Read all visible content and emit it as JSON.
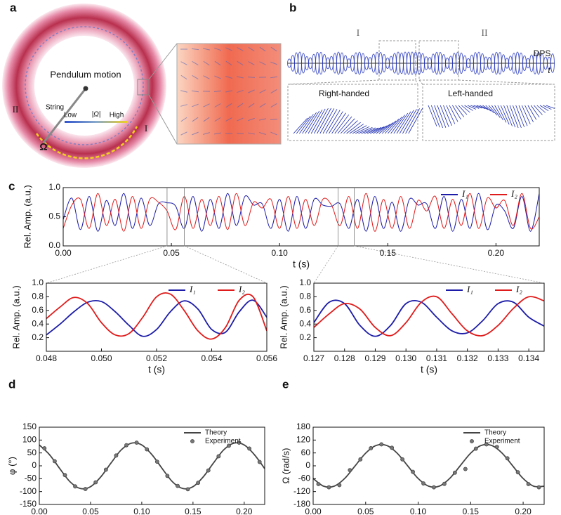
{
  "panels": {
    "a": "a",
    "b": "b",
    "c": "c",
    "d": "d",
    "e": "e"
  },
  "illustration_a": {
    "pendulum": "Pendulum motion",
    "string": "String",
    "low": "Low",
    "omega_abs": "|Ω|",
    "high": "High",
    "label_II": "II",
    "label_I": "I",
    "omega": "Ω"
  },
  "illustration_b": {
    "label_I": "I",
    "label_II": "II",
    "dps": "DPS",
    "t": "t",
    "right": "Right-handed",
    "left": "Left-handed"
  },
  "chart_data": [
    {
      "type": "line",
      "ylabel": "Rel. Amp. (a.u.)",
      "xlabel": "t (s)",
      "legend": "top-right",
      "x": [
        0,
        0.004,
        0.008,
        0.012,
        0.016,
        0.02,
        0.024,
        0.028,
        0.032,
        0.036,
        0.04,
        0.044,
        0.048,
        0.052,
        0.056,
        0.06,
        0.064,
        0.068,
        0.072,
        0.076,
        0.08,
        0.084,
        0.088,
        0.092,
        0.096,
        0.1,
        0.104,
        0.108,
        0.112,
        0.116,
        0.12,
        0.124,
        0.128,
        0.132,
        0.136,
        0.14,
        0.144,
        0.148,
        0.152,
        0.156,
        0.16,
        0.164,
        0.168,
        0.172,
        0.176,
        0.18,
        0.184,
        0.188,
        0.192,
        0.196,
        0.2,
        0.204,
        0.208,
        0.212,
        0.216,
        0.22
      ],
      "series": [
        {
          "name": "I₁",
          "color": "#1c1ca8",
          "values": [
            0.45,
            0.82,
            0.28,
            0.85,
            0.25,
            0.78,
            0.35,
            0.9,
            0.3,
            0.82,
            0.35,
            0.72,
            0.74,
            0.68,
            0.3,
            0.85,
            0.25,
            0.8,
            0.3,
            0.9,
            0.35,
            0.85,
            0.7,
            0.72,
            0.3,
            0.8,
            0.25,
            0.85,
            0.3,
            0.8,
            0.7,
            0.68,
            0.72,
            0.3,
            0.8,
            0.25,
            0.85,
            0.3,
            0.75,
            0.25,
            0.8,
            0.7,
            0.72,
            0.3,
            0.85,
            0.25,
            0.8,
            0.3,
            0.9,
            0.28,
            0.7,
            0.6,
            0.3,
            0.85,
            0.25,
            0.9
          ]
        },
        {
          "name": "I₂",
          "color": "#e01b1b",
          "values": [
            0.3,
            0.7,
            0.8,
            0.3,
            0.9,
            0.35,
            0.8,
            0.25,
            0.85,
            0.3,
            0.8,
            0.75,
            0.6,
            0.28,
            0.85,
            0.3,
            0.8,
            0.35,
            0.85,
            0.28,
            0.9,
            0.35,
            0.75,
            0.65,
            0.8,
            0.3,
            0.85,
            0.3,
            0.8,
            0.35,
            0.8,
            0.7,
            0.35,
            0.85,
            0.3,
            0.9,
            0.25,
            0.8,
            0.3,
            0.85,
            0.3,
            0.78,
            0.6,
            0.85,
            0.3,
            0.8,
            0.35,
            0.9,
            0.3,
            0.82,
            0.65,
            0.78,
            0.35,
            0.9,
            0.3,
            0.5
          ]
        }
      ],
      "xlim": [
        0,
        0.22
      ],
      "xticks": [
        {
          "value": 0,
          "label": "0.00"
        },
        0.05,
        {
          "value": 0.1,
          "label": "0.10"
        },
        0.15,
        {
          "value": 0.2,
          "label": "0.20"
        }
      ],
      "ylim": [
        0,
        1
      ],
      "yticks": [
        {
          "value": 0,
          "label": "0.0"
        },
        0.5,
        {
          "value": 1,
          "label": "1.0"
        }
      ]
    },
    {
      "type": "line",
      "ylabel": "Rel. Amp. (a.u.)",
      "xlabel": "t (s)",
      "legend": "top-right",
      "x": [
        0.048,
        0.0485,
        0.049,
        0.0495,
        0.05,
        0.0505,
        0.051,
        0.0515,
        0.052,
        0.0525,
        0.053,
        0.0535,
        0.054,
        0.0545,
        0.055,
        0.0555,
        0.056
      ],
      "series": [
        {
          "name": "I₁",
          "color": "#1c1ca8",
          "values": [
            0.24,
            0.4,
            0.58,
            0.72,
            0.73,
            0.58,
            0.38,
            0.22,
            0.32,
            0.58,
            0.74,
            0.62,
            0.32,
            0.28,
            0.58,
            0.75,
            0.5
          ]
        },
        {
          "name": "I₂",
          "color": "#e01b1b",
          "values": [
            0.48,
            0.65,
            0.79,
            0.7,
            0.42,
            0.24,
            0.26,
            0.5,
            0.8,
            0.84,
            0.6,
            0.3,
            0.18,
            0.35,
            0.75,
            0.8,
            0.3
          ]
        }
      ],
      "xlim": [
        0.048,
        0.056
      ],
      "xticks": [
        0.048,
        {
          "value": 0.05,
          "label": "0.050"
        },
        0.052,
        0.054,
        0.056
      ],
      "ylim": [
        0,
        1
      ],
      "yticks": [
        0.2,
        0.4,
        0.6,
        0.8,
        {
          "value": 1,
          "label": "1.0"
        }
      ]
    },
    {
      "type": "line",
      "ylabel": "Rel. Amp. (a.u.)",
      "xlabel": "t (s)",
      "legend": "top-right",
      "x": [
        0.127,
        0.1275,
        0.128,
        0.1285,
        0.129,
        0.1295,
        0.13,
        0.1305,
        0.131,
        0.1315,
        0.132,
        0.1325,
        0.133,
        0.1335,
        0.134,
        0.1345
      ],
      "series": [
        {
          "name": "I₁",
          "color": "#1c1ca8",
          "values": [
            0.42,
            0.72,
            0.7,
            0.38,
            0.22,
            0.38,
            0.7,
            0.72,
            0.5,
            0.3,
            0.27,
            0.45,
            0.7,
            0.72,
            0.5,
            0.37
          ]
        },
        {
          "name": "I₂",
          "color": "#e01b1b",
          "values": [
            0.35,
            0.55,
            0.7,
            0.62,
            0.35,
            0.23,
            0.42,
            0.72,
            0.8,
            0.55,
            0.3,
            0.23,
            0.38,
            0.63,
            0.8,
            0.74
          ]
        }
      ],
      "xlim": [
        0.127,
        0.1345
      ],
      "xticks": [
        0.127,
        0.128,
        0.129,
        {
          "value": 0.13,
          "label": "0.130"
        },
        0.131,
        0.132,
        0.133,
        0.134
      ],
      "ylim": [
        0,
        1
      ],
      "yticks": [
        0.2,
        0.4,
        0.6,
        0.8,
        {
          "value": 1,
          "label": "1.0"
        }
      ]
    },
    {
      "type": "line",
      "ylabel": "φ (°)",
      "xlabel": "t (s)",
      "legend": "top-right",
      "series": [
        {
          "name": "Theory",
          "color": "#454545",
          "mode": "line",
          "x": [
            0,
            0.01,
            0.02,
            0.03,
            0.04,
            0.05,
            0.06,
            0.07,
            0.08,
            0.09,
            0.1,
            0.11,
            0.12,
            0.13,
            0.14,
            0.15,
            0.16,
            0.17,
            0.18,
            0.19,
            0.2,
            0.21,
            0.22
          ],
          "values": [
            81,
            43,
            -11,
            -62,
            -88,
            -81,
            -43,
            11,
            62,
            88,
            81,
            43,
            -11,
            -62,
            -88,
            -81,
            -43,
            11,
            62,
            88,
            81,
            43,
            -11
          ]
        },
        {
          "name": "Experiment",
          "color": "#777777",
          "mode": "markers",
          "x": [
            0.005,
            0.015,
            0.025,
            0.035,
            0.045,
            0.055,
            0.065,
            0.075,
            0.085,
            0.095,
            0.105,
            0.115,
            0.125,
            0.135,
            0.145,
            0.155,
            0.165,
            0.175,
            0.185,
            0.195,
            0.205,
            0.215
          ],
          "values": [
            68,
            18,
            -36,
            -80,
            -90,
            -64,
            -15,
            40,
            80,
            90,
            64,
            16,
            -39,
            -78,
            -91,
            -66,
            -18,
            37,
            78,
            90,
            67,
            15
          ]
        }
      ],
      "xlim": [
        0,
        0.22
      ],
      "xticks": [
        {
          "value": 0,
          "label": "0.00"
        },
        0.05,
        {
          "value": 0.1,
          "label": "0.10"
        },
        0.15,
        {
          "value": 0.2,
          "label": "0.20"
        }
      ],
      "ylim": [
        -150,
        150
      ],
      "yticks": [
        -150,
        -100,
        -50,
        0,
        50,
        100,
        150
      ]
    },
    {
      "type": "line",
      "ylabel": "Ω (rad/s)",
      "xlabel": "t (s)",
      "legend": "top-right",
      "series": [
        {
          "name": "Theory",
          "color": "#454545",
          "mode": "line",
          "x": [
            0,
            0.01,
            0.02,
            0.03,
            0.04,
            0.05,
            0.06,
            0.07,
            0.08,
            0.09,
            0.1,
            0.11,
            0.12,
            0.13,
            0.14,
            0.15,
            0.16,
            0.17,
            0.18,
            0.19,
            0.2,
            0.21,
            0.22
          ],
          "values": [
            -59,
            -95,
            -95,
            -59,
            0,
            59,
            95,
            95,
            59,
            0,
            -59,
            -95,
            -95,
            -59,
            0,
            59,
            95,
            95,
            59,
            0,
            -59,
            -95,
            -95
          ]
        },
        {
          "name": "Experiment",
          "color": "#777777",
          "mode": "markers",
          "x": [
            0.005,
            0.015,
            0.025,
            0.035,
            0.045,
            0.055,
            0.065,
            0.075,
            0.085,
            0.095,
            0.105,
            0.115,
            0.125,
            0.135,
            0.145,
            0.155,
            0.165,
            0.175,
            0.185,
            0.195,
            0.205,
            0.215
          ],
          "values": [
            -85,
            -100,
            -90,
            -20,
            30,
            82,
            100,
            84,
            30,
            -28,
            -82,
            -100,
            -84,
            -32,
            -15,
            80,
            100,
            88,
            35,
            -30,
            -85,
            -100
          ]
        }
      ],
      "xlim": [
        0,
        0.22
      ],
      "xticks": [
        {
          "value": 0,
          "label": "0.00"
        },
        0.05,
        {
          "value": 0.1,
          "label": "0.10"
        },
        0.15,
        {
          "value": 0.2,
          "label": "0.20"
        }
      ],
      "ylim": [
        -180,
        180
      ],
      "yticks": [
        -180,
        -120,
        -60,
        0,
        60,
        120,
        180
      ]
    }
  ]
}
